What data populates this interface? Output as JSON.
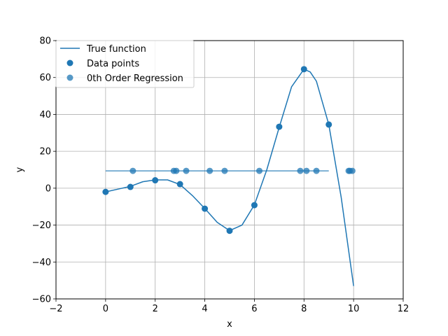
{
  "chart_data": {
    "type": "scatter",
    "title": "",
    "xlabel": "x",
    "ylabel": "y",
    "xlim": [
      -2,
      12
    ],
    "ylim": [
      -60,
      80
    ],
    "xticks": [
      -2,
      0,
      2,
      4,
      6,
      8,
      10,
      12
    ],
    "yticks": [
      -60,
      -40,
      -20,
      0,
      20,
      40,
      60,
      80
    ],
    "grid": true,
    "legend_position": "top-left",
    "colors": {
      "primary": "#1f77b4",
      "regression": "#3b86c2"
    },
    "series": [
      {
        "name": "True function",
        "kind": "line",
        "x": [
          0,
          0.5,
          1,
          1.5,
          2,
          2.5,
          3,
          3.5,
          4,
          4.5,
          5,
          5.5,
          6,
          6.5,
          7,
          7.5,
          8,
          8.25,
          8.5,
          9,
          9.5,
          10
        ],
        "y": [
          -2,
          -0.5,
          1,
          3.5,
          4.5,
          4.5,
          2,
          -4,
          -11,
          -18.5,
          -23,
          -20,
          -9,
          10,
          33,
          55,
          64.5,
          63,
          58,
          34.5,
          -5,
          -53
        ]
      },
      {
        "name": "Data points",
        "kind": "scatter",
        "x": [
          0,
          1,
          2,
          3,
          4,
          5,
          6,
          7,
          8,
          9
        ],
        "y": [
          -2,
          0.7,
          4.3,
          2.2,
          -11.1,
          -23.1,
          -9.2,
          33.3,
          64.5,
          34.5
        ]
      },
      {
        "name": "0th Order Regression",
        "kind": "scatter",
        "line_x": [
          0,
          9
        ],
        "line_y": [
          9.4,
          9.4
        ],
        "x": [
          1.1,
          2.75,
          2.85,
          3.25,
          4.2,
          4.8,
          6.2,
          7.85,
          8.1,
          8.5,
          9.8,
          9.85,
          9.95
        ],
        "y": [
          9.4,
          9.4,
          9.4,
          9.4,
          9.4,
          9.4,
          9.4,
          9.4,
          9.4,
          9.4,
          9.4,
          9.4,
          9.4
        ]
      }
    ]
  }
}
